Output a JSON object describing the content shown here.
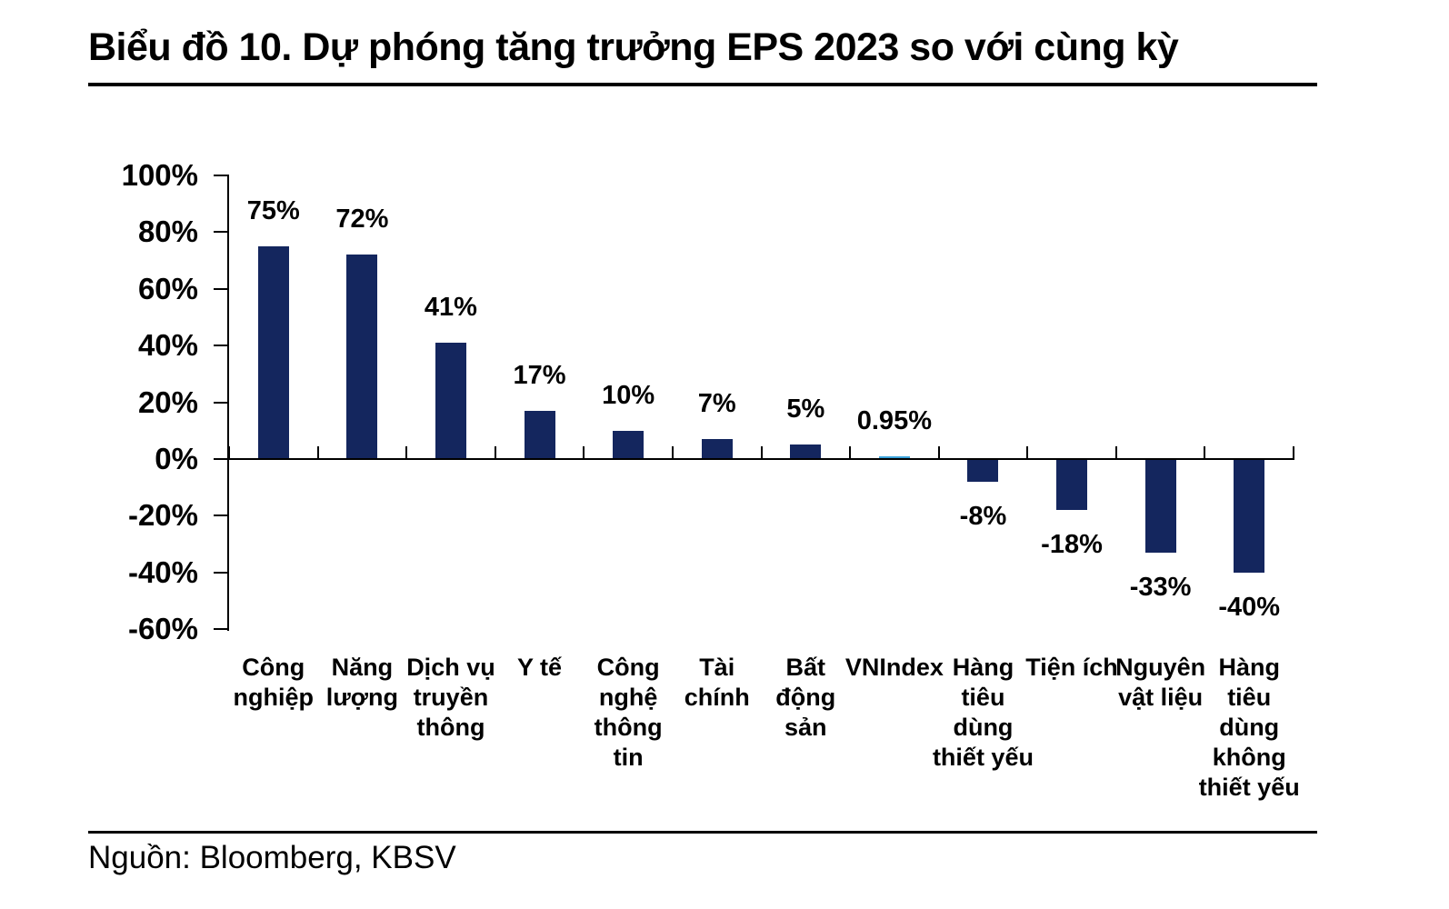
{
  "title": "Biểu đồ 10. Dự phóng tăng trưởng EPS 2023 so với cùng kỳ",
  "source": "Nguồn: Bloomberg, KBSV",
  "colors": {
    "bar": "#14265E",
    "vnindex_bar": "#3BA3DB",
    "axis": "#000000",
    "text": "#000000",
    "background": "#FFFFFF"
  },
  "chart_data": {
    "type": "bar",
    "title": "Biểu đồ 10. Dự phóng tăng trưởng EPS 2023 so với cùng kỳ",
    "xlabel": "",
    "ylabel": "",
    "ylim": [
      -60,
      100
    ],
    "grid": false,
    "legend": false,
    "y_ticks": [
      100,
      80,
      60,
      40,
      20,
      0,
      -20,
      -40,
      -60
    ],
    "y_tick_labels": [
      "100%",
      "80%",
      "60%",
      "40%",
      "20%",
      "0%",
      "-20%",
      "-40%",
      "-60%"
    ],
    "categories": [
      "Công nghiệp",
      "Năng lượng",
      "Dịch vụ truyền thông",
      "Y tế",
      "Công nghệ thông tin",
      "Tài chính",
      "Bất động sản",
      "VNIndex",
      "Hàng tiêu dùng thiết yếu",
      "Tiện ích",
      "Nguyên vật liệu",
      "Hàng tiêu dùng không thiết yếu"
    ],
    "values": [
      75,
      72,
      41,
      17,
      10,
      7,
      5,
      0.95,
      -8,
      -18,
      -33,
      -40
    ],
    "value_labels": [
      "75%",
      "72%",
      "41%",
      "17%",
      "10%",
      "7%",
      "5%",
      "0.95%",
      "-8%",
      "-18%",
      "-33%",
      "-40%"
    ],
    "highlight": {
      "index": 7,
      "category": "VNIndex",
      "color": "#3BA3DB"
    },
    "bar_color": "#14265E"
  }
}
